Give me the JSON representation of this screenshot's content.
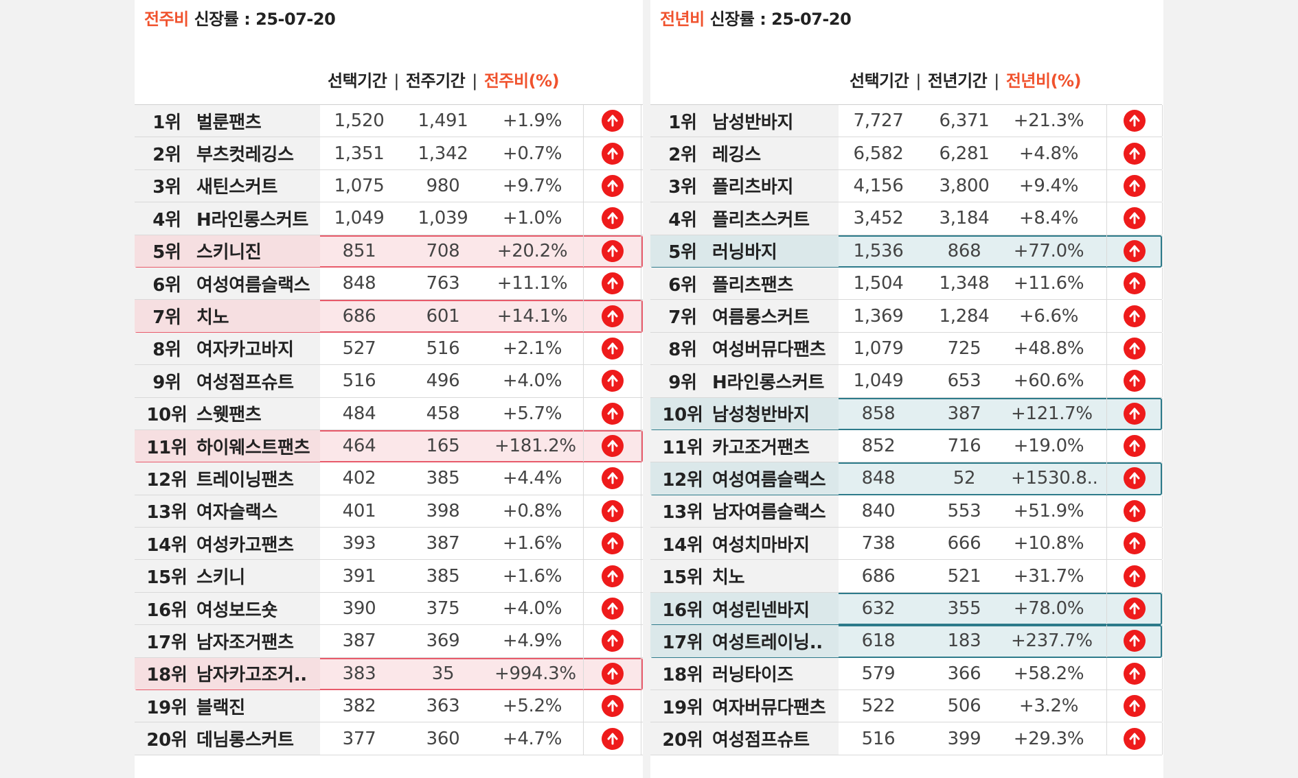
{
  "colors": {
    "accent": "#f0522d",
    "up_icon": "#ee1b1b",
    "highlight_left": "#e85a6a",
    "highlight_right": "#2c7a8a"
  },
  "left": {
    "title_accent": "전주비",
    "title_rest": " 신장률 : 25-07-20",
    "headers": {
      "selected": "선택기간",
      "compare": "전주기간",
      "ratio": "전주비(%)",
      "sep": "|"
    },
    "rows": [
      {
        "rank": "1위",
        "keyword": "벌룬팬츠",
        "selected": "1,520",
        "compare": "1,491",
        "ratio": "+1.9%",
        "highlight": false
      },
      {
        "rank": "2위",
        "keyword": "부츠컷레깅스",
        "selected": "1,351",
        "compare": "1,342",
        "ratio": "+0.7%",
        "highlight": false
      },
      {
        "rank": "3위",
        "keyword": "새틴스커트",
        "selected": "1,075",
        "compare": "980",
        "ratio": "+9.7%",
        "highlight": false
      },
      {
        "rank": "4위",
        "keyword": "H라인롱스커트",
        "selected": "1,049",
        "compare": "1,039",
        "ratio": "+1.0%",
        "highlight": false
      },
      {
        "rank": "5위",
        "keyword": "스키니진",
        "selected": "851",
        "compare": "708",
        "ratio": "+20.2%",
        "highlight": true
      },
      {
        "rank": "6위",
        "keyword": "여성여름슬랙스",
        "selected": "848",
        "compare": "763",
        "ratio": "+11.1%",
        "highlight": false
      },
      {
        "rank": "7위",
        "keyword": "치노",
        "selected": "686",
        "compare": "601",
        "ratio": "+14.1%",
        "highlight": true
      },
      {
        "rank": "8위",
        "keyword": "여자카고바지",
        "selected": "527",
        "compare": "516",
        "ratio": "+2.1%",
        "highlight": false
      },
      {
        "rank": "9위",
        "keyword": "여성점프슈트",
        "selected": "516",
        "compare": "496",
        "ratio": "+4.0%",
        "highlight": false
      },
      {
        "rank": "10위",
        "keyword": "스웻팬츠",
        "selected": "484",
        "compare": "458",
        "ratio": "+5.7%",
        "highlight": false
      },
      {
        "rank": "11위",
        "keyword": "하이웨스트팬츠",
        "selected": "464",
        "compare": "165",
        "ratio": "+181.2%",
        "highlight": true
      },
      {
        "rank": "12위",
        "keyword": "트레이닝팬츠",
        "selected": "402",
        "compare": "385",
        "ratio": "+4.4%",
        "highlight": false
      },
      {
        "rank": "13위",
        "keyword": "여자슬랙스",
        "selected": "401",
        "compare": "398",
        "ratio": "+0.8%",
        "highlight": false
      },
      {
        "rank": "14위",
        "keyword": "여성카고팬츠",
        "selected": "393",
        "compare": "387",
        "ratio": "+1.6%",
        "highlight": false
      },
      {
        "rank": "15위",
        "keyword": "스키니",
        "selected": "391",
        "compare": "385",
        "ratio": "+1.6%",
        "highlight": false
      },
      {
        "rank": "16위",
        "keyword": "여성보드숏",
        "selected": "390",
        "compare": "375",
        "ratio": "+4.0%",
        "highlight": false
      },
      {
        "rank": "17위",
        "keyword": "남자조거팬츠",
        "selected": "387",
        "compare": "369",
        "ratio": "+4.9%",
        "highlight": false
      },
      {
        "rank": "18위",
        "keyword": "남자카고조거..",
        "selected": "383",
        "compare": "35",
        "ratio": "+994.3%",
        "highlight": true
      },
      {
        "rank": "19위",
        "keyword": "블랙진",
        "selected": "382",
        "compare": "363",
        "ratio": "+5.2%",
        "highlight": false
      },
      {
        "rank": "20위",
        "keyword": "데님롱스커트",
        "selected": "377",
        "compare": "360",
        "ratio": "+4.7%",
        "highlight": false
      }
    ]
  },
  "right": {
    "title_accent": "전년비",
    "title_rest": " 신장률 : 25-07-20",
    "headers": {
      "selected": "선택기간",
      "compare": "전년기간",
      "ratio": "전년비(%)",
      "sep": "|"
    },
    "rows": [
      {
        "rank": "1위",
        "keyword": "남성반바지",
        "selected": "7,727",
        "compare": "6,371",
        "ratio": "+21.3%",
        "highlight": false
      },
      {
        "rank": "2위",
        "keyword": "레깅스",
        "selected": "6,582",
        "compare": "6,281",
        "ratio": "+4.8%",
        "highlight": false
      },
      {
        "rank": "3위",
        "keyword": "플리츠바지",
        "selected": "4,156",
        "compare": "3,800",
        "ratio": "+9.4%",
        "highlight": false
      },
      {
        "rank": "4위",
        "keyword": "플리츠스커트",
        "selected": "3,452",
        "compare": "3,184",
        "ratio": "+8.4%",
        "highlight": false
      },
      {
        "rank": "5위",
        "keyword": "러닝바지",
        "selected": "1,536",
        "compare": "868",
        "ratio": "+77.0%",
        "highlight": true
      },
      {
        "rank": "6위",
        "keyword": "플리츠팬츠",
        "selected": "1,504",
        "compare": "1,348",
        "ratio": "+11.6%",
        "highlight": false
      },
      {
        "rank": "7위",
        "keyword": "여름롱스커트",
        "selected": "1,369",
        "compare": "1,284",
        "ratio": "+6.6%",
        "highlight": false
      },
      {
        "rank": "8위",
        "keyword": "여성버뮤다팬츠",
        "selected": "1,079",
        "compare": "725",
        "ratio": "+48.8%",
        "highlight": false
      },
      {
        "rank": "9위",
        "keyword": "H라인롱스커트",
        "selected": "1,049",
        "compare": "653",
        "ratio": "+60.6%",
        "highlight": false
      },
      {
        "rank": "10위",
        "keyword": "남성청반바지",
        "selected": "858",
        "compare": "387",
        "ratio": "+121.7%",
        "highlight": true
      },
      {
        "rank": "11위",
        "keyword": "카고조거팬츠",
        "selected": "852",
        "compare": "716",
        "ratio": "+19.0%",
        "highlight": false
      },
      {
        "rank": "12위",
        "keyword": "여성여름슬랙스",
        "selected": "848",
        "compare": "52",
        "ratio": "+1530.8..",
        "highlight": true
      },
      {
        "rank": "13위",
        "keyword": "남자여름슬랙스",
        "selected": "840",
        "compare": "553",
        "ratio": "+51.9%",
        "highlight": false
      },
      {
        "rank": "14위",
        "keyword": "여성치마바지",
        "selected": "738",
        "compare": "666",
        "ratio": "+10.8%",
        "highlight": false
      },
      {
        "rank": "15위",
        "keyword": "치노",
        "selected": "686",
        "compare": "521",
        "ratio": "+31.7%",
        "highlight": false
      },
      {
        "rank": "16위",
        "keyword": "여성린넨바지",
        "selected": "632",
        "compare": "355",
        "ratio": "+78.0%",
        "highlight": true
      },
      {
        "rank": "17위",
        "keyword": "여성트레이닝..",
        "selected": "618",
        "compare": "183",
        "ratio": "+237.7%",
        "highlight": true
      },
      {
        "rank": "18위",
        "keyword": "러닝타이즈",
        "selected": "579",
        "compare": "366",
        "ratio": "+58.2%",
        "highlight": false
      },
      {
        "rank": "19위",
        "keyword": "여자버뮤다팬츠",
        "selected": "522",
        "compare": "506",
        "ratio": "+3.2%",
        "highlight": false
      },
      {
        "rank": "20위",
        "keyword": "여성점프슈트",
        "selected": "516",
        "compare": "399",
        "ratio": "+29.3%",
        "highlight": false
      }
    ]
  }
}
